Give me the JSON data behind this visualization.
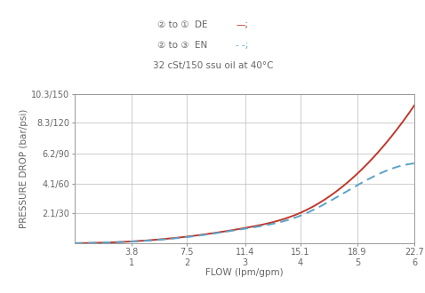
{
  "x_ticks_lpm": [
    3.8,
    7.5,
    11.4,
    15.1,
    18.9,
    22.7
  ],
  "x_ticks_gpm": [
    1,
    2,
    3,
    4,
    5,
    6
  ],
  "x_min": 0,
  "x_max": 22.7,
  "y_ticks_bar": [
    2.1,
    4.1,
    6.2,
    8.3,
    10.3
  ],
  "y_ticks_psi": [
    30,
    60,
    90,
    120,
    150
  ],
  "y_min": 0,
  "y_max": 10.3,
  "de_color": "#c0392b",
  "en_color": "#5ba3c9",
  "linewidth": 1.4,
  "grid_color": "#bbbbbb",
  "ylabel": "PRESSURE DROP (bar/psi)",
  "xlabel": "FLOW (lpm/gpm)",
  "legend_line1_text": "② to ①  DE ",
  "legend_line1_suffix": "—;",
  "legend_line2_text": "② to ③  EN ",
  "legend_line2_suffix": "- -;",
  "subtitle": "32 cSt/150 ssu oil at 40°C",
  "background_color": "#ffffff",
  "text_color": "#666666",
  "axis_color": "#999999",
  "de_x": [
    0,
    3.8,
    7.5,
    11.4,
    15.1,
    18.9,
    22.7
  ],
  "de_y": [
    0,
    0.12,
    0.45,
    1.05,
    2.1,
    4.8,
    9.5
  ],
  "en_x": [
    0,
    3.8,
    7.5,
    11.4,
    15.1,
    18.9,
    22.7
  ],
  "en_y": [
    0,
    0.11,
    0.42,
    1.0,
    1.9,
    4.0,
    5.5
  ]
}
